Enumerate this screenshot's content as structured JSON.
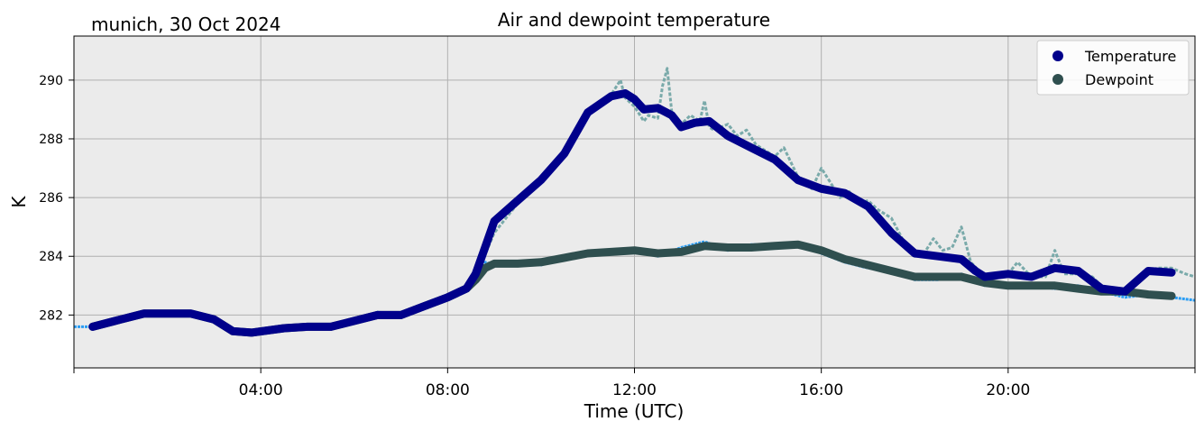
{
  "header": {
    "location_date": "munich, 30 Oct 2024"
  },
  "chart_data": {
    "type": "line",
    "title": "Air and dewpoint temperature",
    "xlabel": "Time (UTC)",
    "ylabel": "K",
    "x_unit": "hour",
    "xlim": [
      0,
      24
    ],
    "ylim": [
      280.2,
      291.5
    ],
    "x_ticks": [
      {
        "x": 4,
        "label": "04:00"
      },
      {
        "x": 8,
        "label": "08:00"
      },
      {
        "x": 12,
        "label": "12:00"
      },
      {
        "x": 16,
        "label": "16:00"
      },
      {
        "x": 20,
        "label": "20:00"
      }
    ],
    "x_minor_ticks": [
      0,
      24
    ],
    "y_ticks": [
      282,
      284,
      286,
      288,
      290
    ],
    "grid": true,
    "background_color": "#ebebeb",
    "legend_position": "top-right",
    "colors": {
      "temperature": "#00008b",
      "dewpoint": "#2f4f4f",
      "temperature_raw": "#7aaaaa",
      "dewpoint_raw": "#2a9df4"
    },
    "series": [
      {
        "name": "Temperature",
        "key": "temperature",
        "x": [
          0.4,
          1.0,
          1.5,
          2.0,
          2.5,
          3.0,
          3.4,
          3.8,
          4.5,
          5.0,
          5.5,
          6.0,
          6.5,
          7.0,
          7.5,
          8.0,
          8.4,
          8.6,
          8.8,
          9.0,
          9.5,
          10.0,
          10.5,
          11.0,
          11.5,
          11.8,
          12.0,
          12.2,
          12.5,
          12.8,
          13.0,
          13.3,
          13.6,
          14.0,
          14.5,
          15.0,
          15.5,
          16.0,
          16.5,
          17.0,
          17.5,
          18.0,
          18.5,
          19.0,
          19.3,
          19.5,
          20.0,
          20.5,
          21.0,
          21.5,
          22.0,
          22.5,
          23.0,
          23.5
        ],
        "y": [
          281.6,
          281.85,
          282.05,
          282.05,
          282.05,
          281.85,
          281.45,
          281.4,
          281.55,
          281.6,
          281.6,
          281.8,
          282.0,
          282.0,
          282.3,
          282.6,
          282.9,
          283.4,
          284.3,
          285.2,
          285.9,
          286.6,
          287.5,
          288.9,
          289.45,
          289.55,
          289.35,
          289.0,
          289.05,
          288.8,
          288.4,
          288.55,
          288.6,
          288.1,
          287.7,
          287.3,
          286.6,
          286.3,
          286.15,
          285.7,
          284.8,
          284.1,
          284.0,
          283.9,
          283.5,
          283.3,
          283.4,
          283.3,
          283.6,
          283.5,
          282.9,
          282.8,
          283.5,
          283.45
        ]
      },
      {
        "name": "Dewpoint",
        "key": "dewpoint",
        "x": [
          0.4,
          1.0,
          1.5,
          2.0,
          2.5,
          3.0,
          3.4,
          3.8,
          4.5,
          5.0,
          5.5,
          6.0,
          6.5,
          7.0,
          7.5,
          8.0,
          8.4,
          8.6,
          8.8,
          9.0,
          9.5,
          10.0,
          10.5,
          11.0,
          11.5,
          12.0,
          12.5,
          13.0,
          13.5,
          14.0,
          14.5,
          15.0,
          15.5,
          16.0,
          16.5,
          17.0,
          17.5,
          18.0,
          18.5,
          19.0,
          19.5,
          20.0,
          20.5,
          21.0,
          21.5,
          22.0,
          22.5,
          23.0,
          23.5
        ],
        "y": [
          281.6,
          281.85,
          282.05,
          282.05,
          282.05,
          281.85,
          281.45,
          281.4,
          281.55,
          281.6,
          281.6,
          281.8,
          282.0,
          282.0,
          282.3,
          282.6,
          282.9,
          283.2,
          283.6,
          283.75,
          283.75,
          283.8,
          283.95,
          284.1,
          284.15,
          284.2,
          284.1,
          284.15,
          284.35,
          284.3,
          284.3,
          284.35,
          284.4,
          284.2,
          283.9,
          283.7,
          283.5,
          283.3,
          283.3,
          283.3,
          283.1,
          283.0,
          283.0,
          283.0,
          282.9,
          282.8,
          282.8,
          282.7,
          282.65
        ]
      }
    ],
    "raw_series": [
      {
        "key": "temperature_raw",
        "x": [
          8.6,
          9.0,
          9.5,
          10.0,
          10.5,
          11.0,
          11.5,
          11.7,
          11.8,
          12.0,
          12.2,
          12.3,
          12.5,
          12.6,
          12.7,
          12.8,
          13.0,
          13.2,
          13.4,
          13.5,
          13.6,
          13.7,
          14.0,
          14.2,
          14.4,
          14.6,
          15.0,
          15.2,
          15.5,
          15.8,
          16.0,
          16.2,
          16.4,
          16.6,
          16.8,
          17.0,
          17.2,
          17.5,
          17.8,
          18.0,
          18.2,
          18.4,
          18.6,
          18.8,
          19.0,
          19.2,
          19.5,
          19.8,
          20.0,
          20.2,
          20.5,
          20.8,
          21.0,
          21.2,
          21.5,
          21.8,
          22.0,
          22.3,
          22.6,
          23.0,
          23.2,
          23.5,
          23.8,
          24.0
        ],
        "y": [
          283.3,
          284.8,
          285.8,
          286.5,
          287.6,
          289.0,
          289.5,
          290.0,
          289.4,
          289.1,
          288.6,
          288.8,
          288.7,
          289.8,
          290.4,
          288.9,
          288.5,
          288.8,
          288.6,
          289.3,
          288.4,
          288.3,
          288.5,
          288.1,
          288.3,
          287.8,
          287.4,
          287.7,
          286.7,
          286.3,
          287.0,
          286.5,
          286.0,
          286.2,
          285.8,
          285.9,
          285.6,
          285.3,
          284.4,
          284.0,
          284.1,
          284.6,
          284.2,
          284.3,
          285.0,
          283.8,
          283.3,
          283.4,
          283.4,
          283.8,
          283.3,
          283.3,
          284.2,
          283.4,
          283.4,
          283.3,
          283.0,
          282.9,
          282.8,
          283.5,
          283.6,
          283.6,
          283.4,
          283.3
        ]
      },
      {
        "key": "dewpoint_raw",
        "x": [
          0.0,
          0.4,
          1.0,
          1.5,
          2.0,
          2.5,
          3.0,
          3.4,
          3.8,
          4.5,
          5.0,
          5.5,
          6.0,
          6.5,
          7.0,
          7.5,
          8.0,
          8.4,
          8.6,
          8.8,
          9.0,
          9.5,
          10.0,
          10.5,
          11.0,
          11.5,
          12.0,
          12.5,
          13.0,
          13.5,
          14.0,
          14.5,
          15.0,
          15.5,
          16.0,
          16.5,
          17.0,
          17.5,
          18.0,
          18.5,
          19.0,
          19.5,
          20.0,
          20.5,
          21.0,
          21.5,
          22.0,
          22.5,
          23.0,
          23.5,
          24.0
        ],
        "y": [
          281.6,
          281.6,
          281.9,
          282.0,
          282.1,
          282.0,
          281.8,
          281.4,
          281.4,
          281.5,
          281.6,
          281.6,
          281.8,
          282.1,
          282.0,
          282.3,
          282.7,
          282.8,
          283.1,
          283.8,
          283.7,
          283.8,
          283.7,
          284.0,
          284.1,
          284.2,
          284.2,
          284.0,
          284.3,
          284.5,
          284.2,
          284.4,
          284.4,
          284.4,
          284.1,
          283.8,
          283.6,
          283.5,
          283.2,
          283.2,
          283.4,
          283.0,
          283.0,
          283.0,
          282.9,
          283.0,
          282.8,
          282.6,
          282.7,
          282.6,
          282.5
        ]
      }
    ]
  }
}
